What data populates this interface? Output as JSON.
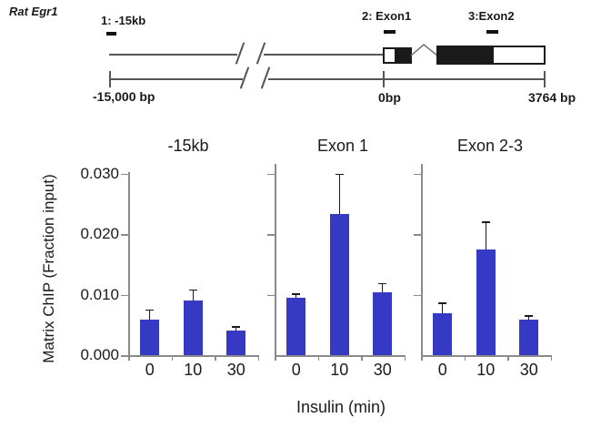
{
  "diagram": {
    "gene_label": "Rat Egr1",
    "sites": [
      {
        "label": "1: -15kb"
      },
      {
        "label": "2: Exon1"
      },
      {
        "label": "3:Exon2"
      }
    ],
    "scale_labels": {
      "left": "-15,000 bp",
      "zero": "0bp",
      "right": "3764 bp"
    }
  },
  "chart_data": {
    "type": "bar",
    "xlabel": "Insulin (min)",
    "ylabel": "Matrix ChIP (Fraction input)",
    "categories": [
      "0",
      "10",
      "30"
    ],
    "y_ticks": [
      0.0,
      0.01,
      0.02,
      0.03
    ],
    "y_tick_labels": [
      "0.000",
      "0.010",
      "0.020",
      "0.030"
    ],
    "ylim": [
      0,
      0.03
    ],
    "grid": false,
    "legend": false,
    "error_bars": "upper-only-with-caps",
    "bar_color": "#3639c4",
    "panels": [
      {
        "title": "-15kb",
        "values": [
          0.0058,
          0.009,
          0.004
        ],
        "errors": [
          0.0018,
          0.0019,
          0.0008
        ]
      },
      {
        "title": "Exon 1",
        "values": [
          0.0095,
          0.0233,
          0.0104
        ],
        "errors": [
          0.0007,
          0.0067,
          0.0015
        ]
      },
      {
        "title": "Exon 2-3",
        "values": [
          0.0069,
          0.0174,
          0.0059
        ],
        "errors": [
          0.0018,
          0.0047,
          0.0007
        ]
      }
    ]
  }
}
